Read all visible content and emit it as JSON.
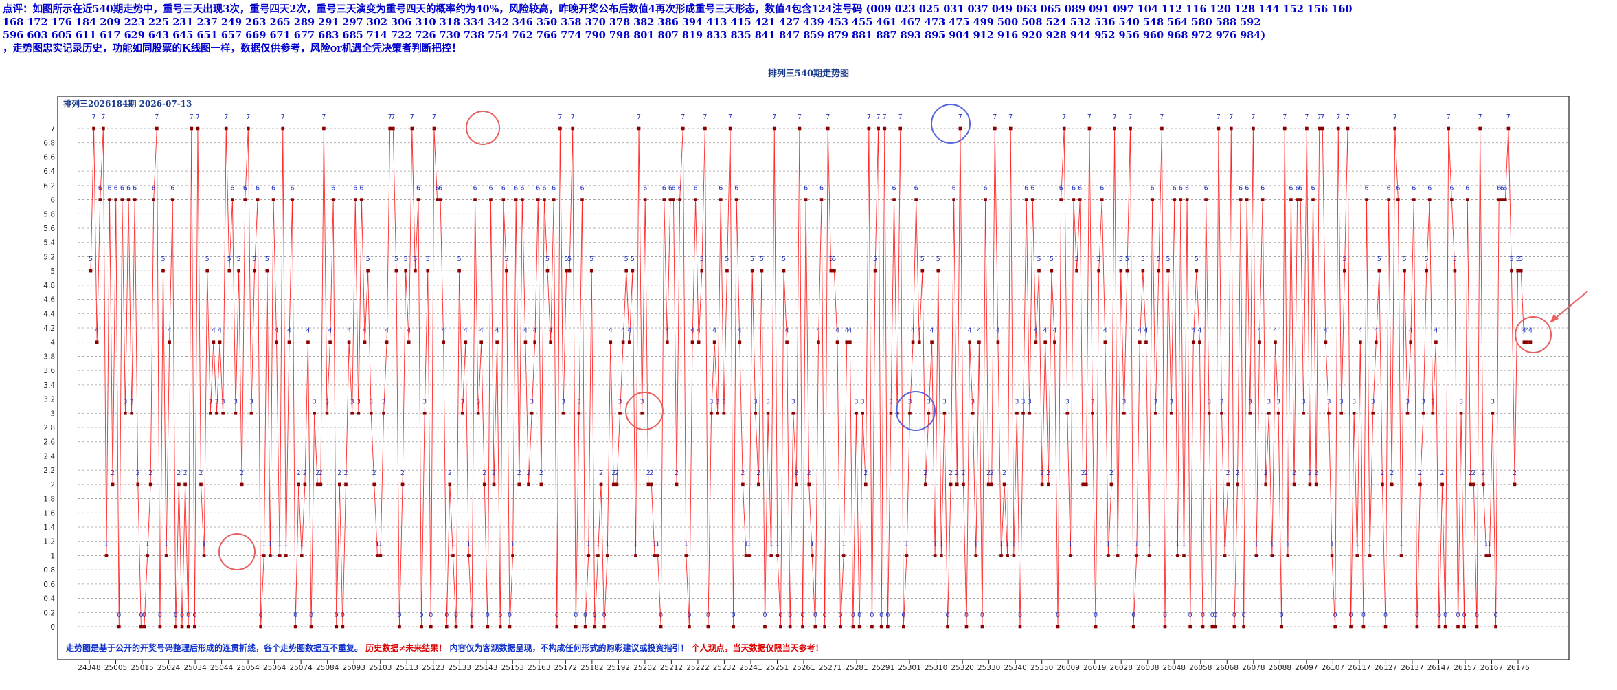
{
  "header": {
    "line1": "点评：如图所示在近540期走势中，重号三天出现3次，重号四天2次，重号三天演变为重号四天的概率约为40%，风险较高，昨晚开奖公布后数值4再次形成重号三天形态，数值4包含124注号码 (009  023  025  031  037  049  063  065  089  091  097  104  112  116  120  128  144  152  156  160",
    "line2": "168  172  176  184  209  223  225  231  237  249  263  265  289  291  297  302  306  310  318  334  342  346  350  358  370  378  382  386  394  413  415  421  427  439  453  455  461  467  473  475  499  500  508  524  532  536  540  548  564  580  588  592",
    "line3": "596  603  605  611  617  629  643  645  651  657  669  671  677  683  685  714  722  726  730  738  754  762  766  774  790  798  801  807  819  833  835  841  847  859  879  881  887  893  895  904  912  916  920  928  944  952  956  960  968  972  976  984)",
    "line4": "，走势图忠实记录历史，功能如同股票的K线图一样，数据仅供参考，风险or机遇全凭决策者判断把控！"
  },
  "notes": {
    "blue1": "走势图是基于公开的开奖号码整理后形成的连贯折线，各个走势图数据互不重复。",
    "red1": "历史数据≠未来结果！",
    "blue2": "内容仅为客观数据呈现，不构成任何形式的购彩建议或投资指引！",
    "red2": "个人观点，当天数据仅限当天参考！"
  },
  "colors": {
    "line": "#ff2a2a",
    "marker": "#8b0000",
    "label": "#2233bb",
    "red_circle": "#e86060",
    "blue_circle": "#5566dd",
    "grid": "#999999"
  },
  "chart_data": {
    "type": "line",
    "title": "排列三540期走势图",
    "subtitle": "排列三2026184期  2026-07-13",
    "ylim": [
      0,
      7
    ],
    "yticks": [
      "0",
      "0.2",
      "0.4",
      "0.6",
      "0.8",
      "1",
      "1.2",
      "1.4",
      "1.6",
      "1.8",
      "2",
      "2.2",
      "2.4",
      "2.6",
      "2.8",
      "3",
      "3.2",
      "3.4",
      "3.6",
      "3.8",
      "4",
      "4.2",
      "4.4",
      "4.6",
      "4.8",
      "5",
      "5.2",
      "5.4",
      "5.6",
      "5.8",
      "6",
      "6.2",
      "6.4",
      "6.6",
      "6.8",
      "7"
    ],
    "xtick_labels": [
      "24348",
      "25005",
      "25015",
      "25024",
      "25034",
      "25044",
      "25054",
      "25064",
      "25074",
      "25084",
      "25093",
      "25103",
      "25113",
      "25123",
      "25133",
      "25143",
      "25153",
      "25163",
      "25172",
      "25182",
      "25192",
      "25202",
      "25212",
      "25222",
      "25232",
      "25241",
      "25251",
      "25261",
      "25271",
      "25281",
      "25291",
      "25301",
      "25310",
      "25320",
      "25330",
      "25340",
      "25350",
      "26009",
      "26019",
      "26028",
      "26038",
      "26048",
      "26058",
      "26068",
      "26078",
      "26088",
      "26097",
      "26107",
      "26117",
      "26127",
      "26137",
      "26147",
      "26157",
      "26167",
      "26176"
    ],
    "series": [
      {
        "values": [
          5,
          7,
          4,
          6,
          7,
          1,
          6,
          2,
          6,
          0,
          6,
          3,
          6,
          3,
          6,
          2,
          0,
          0,
          1,
          2,
          6,
          7,
          0,
          5,
          1,
          4,
          6,
          0,
          2,
          0,
          2,
          0,
          7,
          0,
          7,
          2,
          1,
          5,
          3,
          4,
          3,
          4,
          3,
          7,
          5,
          6,
          3,
          5,
          2,
          6,
          7,
          3,
          5,
          6,
          0,
          1,
          5,
          1,
          6,
          4,
          1,
          7,
          1,
          4,
          6,
          0,
          2,
          1,
          2,
          4,
          0,
          3,
          2,
          2,
          7,
          3,
          4,
          6,
          0,
          2,
          0,
          2,
          4,
          3,
          6,
          3,
          6,
          4,
          5,
          3,
          2,
          1,
          1,
          3,
          4,
          7,
          7,
          5,
          0,
          2,
          5,
          4,
          7,
          5,
          6,
          0,
          3,
          5,
          0,
          7,
          6,
          6,
          4,
          0,
          2,
          1,
          0,
          5,
          3,
          4,
          1,
          0,
          6,
          3,
          4,
          2,
          0,
          6,
          2,
          4,
          0,
          6,
          5,
          0,
          1,
          6,
          2,
          6,
          4,
          2,
          3,
          4,
          6,
          2,
          6,
          5,
          4,
          6,
          0,
          7,
          3,
          5,
          5,
          7,
          0,
          3,
          6,
          0,
          1,
          5,
          0,
          1,
          2,
          0,
          1,
          4,
          2,
          2,
          3,
          4,
          5,
          4,
          5,
          1,
          7,
          3,
          6,
          2,
          2,
          1,
          1,
          0,
          6,
          4,
          6,
          6,
          2,
          6,
          7,
          1,
          0,
          4,
          6,
          4,
          5,
          7,
          0,
          3,
          4,
          3,
          6,
          3,
          5,
          7,
          0,
          6,
          4,
          2,
          1,
          1,
          5,
          3,
          2,
          5,
          0,
          3,
          1,
          7,
          1,
          0,
          5,
          4,
          0,
          3,
          2,
          7,
          0,
          6,
          2,
          1,
          0,
          4,
          6,
          0,
          7,
          5,
          5,
          4,
          0,
          1,
          4,
          4,
          0,
          3,
          0,
          3,
          2,
          7,
          0,
          5,
          7,
          0,
          7,
          0,
          3,
          6,
          3,
          7,
          0,
          1,
          3,
          4,
          6,
          4,
          5,
          2,
          3,
          4,
          1,
          5,
          1,
          3,
          0,
          2,
          6,
          2,
          7,
          2,
          0,
          4,
          3,
          1,
          4,
          0,
          6,
          2,
          2,
          7,
          4,
          1,
          2,
          1,
          7,
          1,
          3,
          0,
          3,
          6,
          3,
          6,
          4,
          5,
          2,
          4,
          2,
          5,
          4,
          0,
          6,
          7,
          3,
          1,
          6,
          5,
          6,
          2,
          2,
          7,
          3,
          0,
          5,
          6,
          4,
          1,
          2,
          7,
          1,
          5,
          3,
          5,
          7,
          0,
          1,
          4,
          5,
          4,
          1,
          6,
          3,
          5,
          7,
          0,
          5,
          3,
          6,
          1,
          6,
          1,
          6,
          0,
          4,
          5,
          4,
          0,
          6,
          3,
          0,
          0,
          7,
          3,
          1,
          2,
          7,
          0,
          2,
          6,
          0,
          6,
          3,
          7,
          1,
          4,
          6,
          2,
          3,
          1,
          4,
          3,
          0,
          7,
          1,
          6,
          2,
          6,
          6,
          3,
          7,
          2,
          6,
          2,
          7,
          7,
          4,
          3,
          1,
          0,
          7,
          3,
          5,
          7,
          0,
          3,
          1,
          4,
          0,
          6,
          1,
          3,
          4,
          5,
          2,
          0,
          6,
          2,
          7,
          6,
          1,
          5,
          3,
          4,
          6,
          0,
          2,
          3,
          5,
          6,
          3,
          4,
          0,
          2,
          0,
          7,
          6,
          5,
          0,
          3,
          0,
          6,
          2,
          2,
          0,
          7,
          2,
          1,
          1,
          3,
          0,
          6,
          6,
          6,
          7,
          5,
          2,
          5,
          5,
          4,
          4,
          4
        ]
      }
    ],
    "grid": true,
    "annotations": [
      "red-circle-777",
      "red-circle-1111",
      "red-circle-333",
      "blue-circle-7777",
      "blue-circle-3333",
      "red-circle-444",
      "red-arrow"
    ]
  }
}
